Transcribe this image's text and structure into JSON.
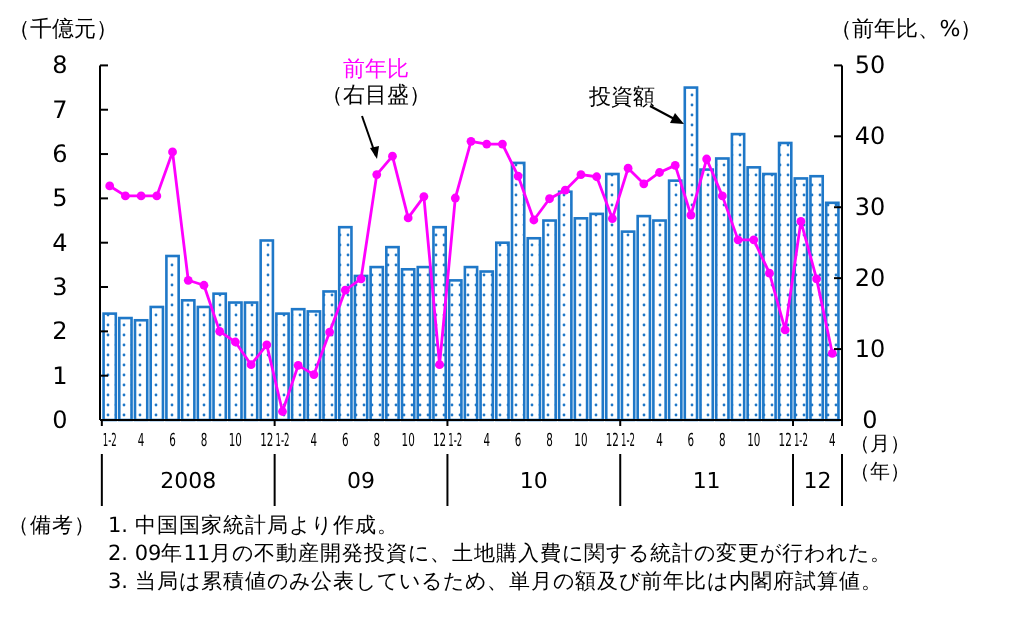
{
  "chart_data": {
    "type": "bar",
    "ylabel": "（千億元）",
    "y2label": "（前年比、%）",
    "xlabel": "（月）",
    "categories": [
      "1-2",
      null,
      "4",
      null,
      "6",
      null,
      "8",
      null,
      "10",
      null,
      "12",
      "1-2",
      null,
      "4",
      null,
      "6",
      null,
      "8",
      null,
      "10",
      null,
      "12",
      "1-2",
      null,
      "4",
      null,
      "6",
      null,
      "8",
      null,
      "10",
      null,
      "12",
      "1-2",
      null,
      "4",
      null,
      "6",
      null,
      "8",
      null,
      "10",
      null,
      "12",
      "1-2",
      null,
      "4"
    ],
    "series": [
      {
        "name": "投資額",
        "color": "#1f78c8",
        "values": [
          2.4,
          2.3,
          2.25,
          2.55,
          3.7,
          2.7,
          2.55,
          2.85,
          2.65,
          2.65,
          4.05,
          2.4,
          2.5,
          2.45,
          2.9,
          4.35,
          3.25,
          3.45,
          3.9,
          3.4,
          3.45,
          4.35,
          3.15,
          3.45,
          3.35,
          4.0,
          5.8,
          4.1,
          4.5,
          5.15,
          4.55,
          4.65,
          5.55,
          4.25,
          4.6,
          4.5,
          5.4,
          7.5,
          5.65,
          5.9,
          6.45,
          5.7,
          5.55,
          6.25,
          5.45,
          5.5,
          4.9
        ]
      },
      {
        "name": "前年比",
        "type": "line",
        "axis": "y2",
        "color": "#ff00ff",
        "values": [
          33,
          31.6,
          31.6,
          31.6,
          37.8,
          19.7,
          19,
          12.5,
          11,
          7.8,
          10.6,
          1.2,
          7.7,
          6.4,
          12.4,
          18.3,
          19.9,
          34.6,
          37.2,
          28.5,
          31.5,
          7.8,
          31.3,
          39.3,
          38.9,
          38.9,
          34.4,
          28.2,
          31.2,
          32.4,
          34.6,
          34.3,
          28.4,
          35.5,
          33.3,
          34.9,
          35.9,
          28.9,
          36.8,
          31.6,
          25.4,
          25.4,
          20.7,
          12.7,
          28,
          19.9,
          9.4
        ]
      }
    ],
    "ylim": [
      0,
      8
    ],
    "yticks": [
      0,
      1,
      2,
      3,
      4,
      5,
      6,
      7,
      8
    ],
    "y2lim": [
      0,
      50
    ],
    "y2ticks": [
      0,
      10,
      20,
      30,
      40,
      50
    ],
    "marker": "circle",
    "grid": false,
    "annotations": [
      "2008",
      "09",
      "10",
      "11",
      "12",
      "（年）",
      "（右目盛）",
      "（備考）",
      "1. 中国国家統計局より作成。",
      "2. 09年11月の不動産開発投資に、土地購入費に関する統計の変更が行われた。",
      "3. 当局は累積値のみ公表しているため、単月の額及び前年比は内閣府試算値。"
    ]
  }
}
